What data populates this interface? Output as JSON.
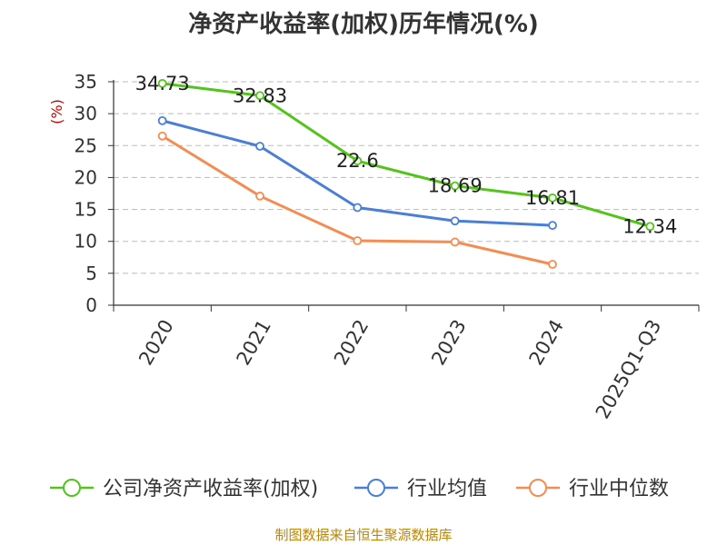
{
  "title": "净资产收益率(加权)历年情况(%)",
  "source": "制图数据来自恒生聚源数据库",
  "colors": {
    "company": "#52c41a",
    "industry_avg": "#4a7fd6",
    "industry_median": "#f58c52",
    "ylabel": "#cc0000",
    "source": "#b8860b"
  },
  "chart_data": {
    "type": "line",
    "title": "净资产收益率(加权)历年情况(%)",
    "xlabel": "",
    "ylabel": "(%)",
    "ylim": [
      0,
      35
    ],
    "yticks": [
      0,
      5,
      10,
      15,
      20,
      25,
      30,
      35
    ],
    "grid": true,
    "legend": "bottom",
    "categories": [
      "2020",
      "2021",
      "2022",
      "2023",
      "2024",
      "2025Q1-Q3"
    ],
    "series": [
      {
        "name": "公司净资产收益率(加权)",
        "color": "#52c41a",
        "values": [
          34.73,
          32.83,
          22.6,
          18.69,
          16.81,
          12.34
        ],
        "labels": true
      },
      {
        "name": "行业均值",
        "color": "#4a7fd6",
        "values": [
          28.9,
          24.9,
          15.3,
          13.2,
          12.5,
          null
        ],
        "labels": false
      },
      {
        "name": "行业中位数",
        "color": "#f58c52",
        "values": [
          26.5,
          17.1,
          10.1,
          9.9,
          6.4,
          null
        ],
        "labels": false
      }
    ]
  }
}
